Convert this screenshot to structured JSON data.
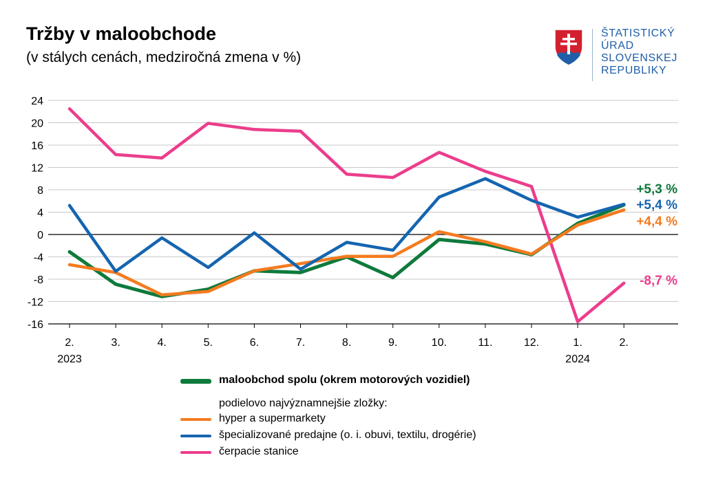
{
  "header": {
    "title": "Tržby v maloobchode",
    "subtitle": "(v stálych cenách, medziročná zmena v %)"
  },
  "logo": {
    "text_lines": [
      "ŠTATISTICKÝ",
      "ÚRAD",
      "SLOVENSKEJ",
      "REPUBLIKY"
    ],
    "color": "#1f5fa8",
    "icon": "slovak-coat-of-arms-icon"
  },
  "chart_data": {
    "type": "line",
    "title": "Tržby v maloobchode",
    "subtitle": "(v stálych cenách, medziročná zmena v %)",
    "xlabel": "",
    "ylabel": "",
    "categories": [
      "2.",
      "3.",
      "4.",
      "5.",
      "6.",
      "7.",
      "8.",
      "9.",
      "10.",
      "11.",
      "12.",
      "1.",
      "2."
    ],
    "year_labels": [
      {
        "index": 0,
        "label": "2023"
      },
      {
        "index": 11,
        "label": "2024"
      }
    ],
    "yticks": [
      24,
      20,
      16,
      12,
      8,
      4,
      0,
      -4,
      -8,
      -12,
      -16
    ],
    "ytick_labels": [
      "24",
      "20",
      "16",
      "12",
      "8",
      "4",
      "0",
      "-4",
      "-8",
      "-12",
      "-16"
    ],
    "ylim": [
      -16,
      24
    ],
    "grid": true,
    "legend_position": "bottom",
    "series": [
      {
        "name": "maloobchod spolu (okrem motorových vozidiel)",
        "color": "#0e7a3c",
        "bold": true,
        "values": [
          -3.1,
          -8.9,
          -11.1,
          -9.8,
          -6.5,
          -6.8,
          -4.0,
          -7.7,
          -0.9,
          -1.7,
          -3.6,
          2.0,
          5.3
        ],
        "end_label": "+5,3 %"
      },
      {
        "name": "hyper a supermarkety",
        "color": "#f47b20",
        "bold": false,
        "values": [
          -5.4,
          -6.8,
          -10.8,
          -10.2,
          -6.5,
          -5.2,
          -3.9,
          -3.9,
          0.5,
          -1.3,
          -3.5,
          1.7,
          4.4
        ],
        "end_label": "+4,4 %"
      },
      {
        "name": "špecializované predajne (o. i. obuvi, textilu, drogérie)",
        "color": "#1565b0",
        "bold": false,
        "values": [
          5.2,
          -6.6,
          -0.6,
          -5.9,
          0.3,
          -6.2,
          -1.4,
          -2.8,
          6.7,
          10.0,
          6.1,
          3.1,
          5.4
        ],
        "end_label": "+5,4 %"
      },
      {
        "name": "čerpacie stanice",
        "color": "#ec3d8c",
        "bold": false,
        "values": [
          22.5,
          14.3,
          13.7,
          19.9,
          18.8,
          18.5,
          10.8,
          10.2,
          14.7,
          11.3,
          8.6,
          -15.6,
          -8.7
        ],
        "end_label": "-8,7 %"
      }
    ]
  },
  "legend": {
    "main": "maloobchod spolu (okrem motorových vozidiel)",
    "components_heading": "podielovo najvýznamnejšie zložky:",
    "hyper": "hyper a supermarkety",
    "specialized": "špecializované predajne (o. i. obuvi, textilu, drogérie)",
    "fuel": "čerpacie stanice"
  }
}
